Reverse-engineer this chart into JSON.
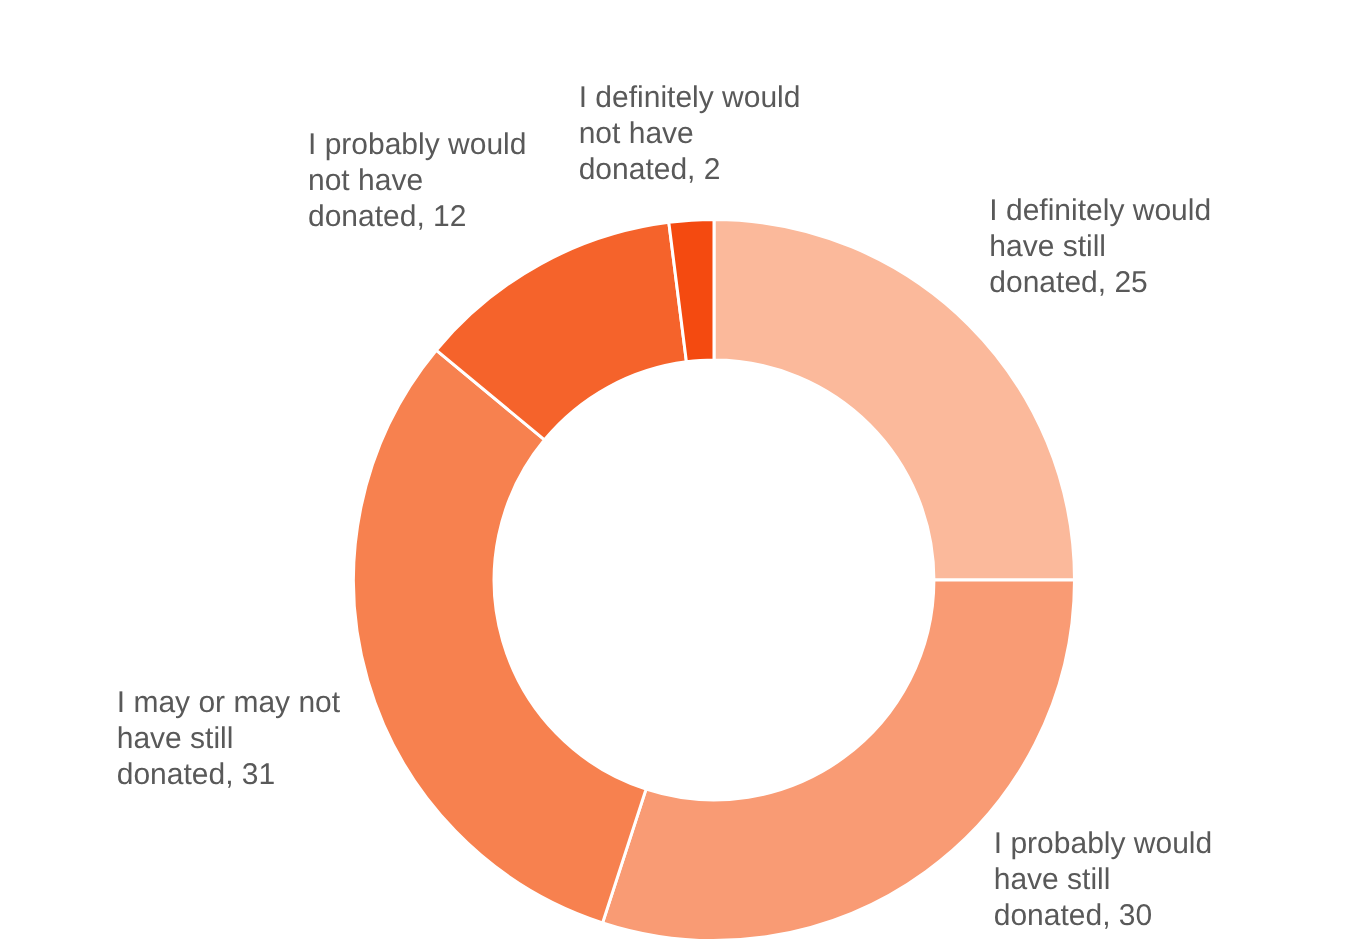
{
  "chart_data": {
    "type": "donut",
    "categories": [
      "I definitely would have still donated",
      "I probably would have still donated",
      "I may or may not have still donated",
      "I probably would not have donated",
      "I definitely would not have donated"
    ],
    "values": [
      25,
      30,
      31,
      12,
      2
    ],
    "colors": [
      "#fbb99b",
      "#f99b74",
      "#f7814f",
      "#f5632b",
      "#f44a10"
    ],
    "value_labels": [
      ", 25",
      ", 30",
      ", 31",
      ", 12",
      ", 2"
    ],
    "legend": false
  }
}
